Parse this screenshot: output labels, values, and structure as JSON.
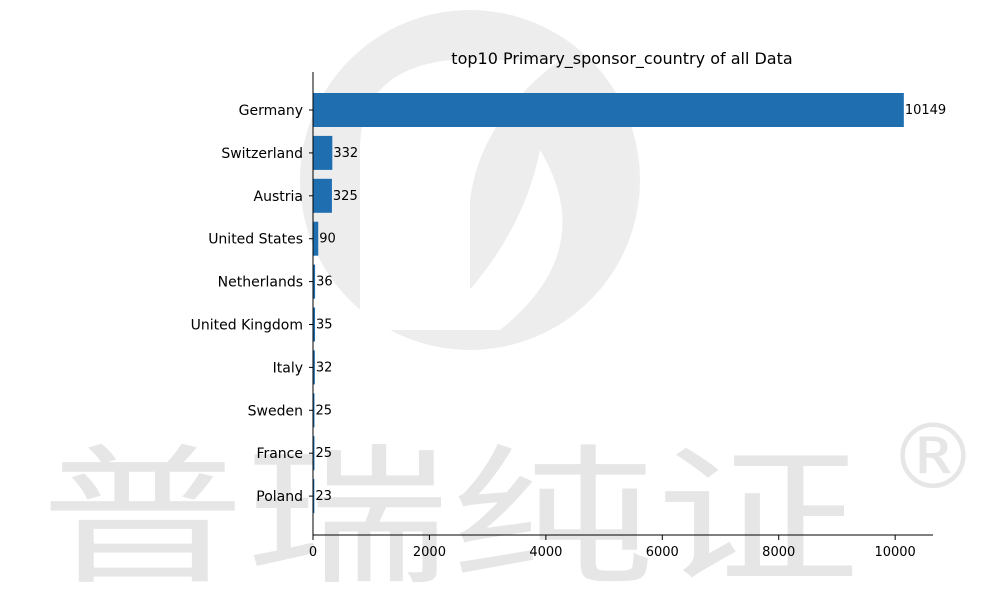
{
  "chart_data": {
    "type": "bar",
    "orientation": "horizontal",
    "title": "top10 Primary_sponsor_country of all Data",
    "xlabel": "",
    "ylabel": "",
    "categories": [
      "Germany",
      "Switzerland",
      "Austria",
      "United States",
      "Netherlands",
      "United Kingdom",
      "Italy",
      "Sweden",
      "France",
      "Poland"
    ],
    "values": [
      10149,
      332,
      325,
      90,
      36,
      35,
      32,
      25,
      25,
      23
    ],
    "xlim": [
      0,
      10650
    ],
    "xticks": [
      0,
      2000,
      4000,
      6000,
      8000,
      10000
    ],
    "bar_color": "#1f6fb0",
    "grid": false,
    "legend": "none"
  },
  "watermark": {
    "text": "普瑞纯证",
    "mark": "®",
    "color": "#e6e6e6"
  }
}
